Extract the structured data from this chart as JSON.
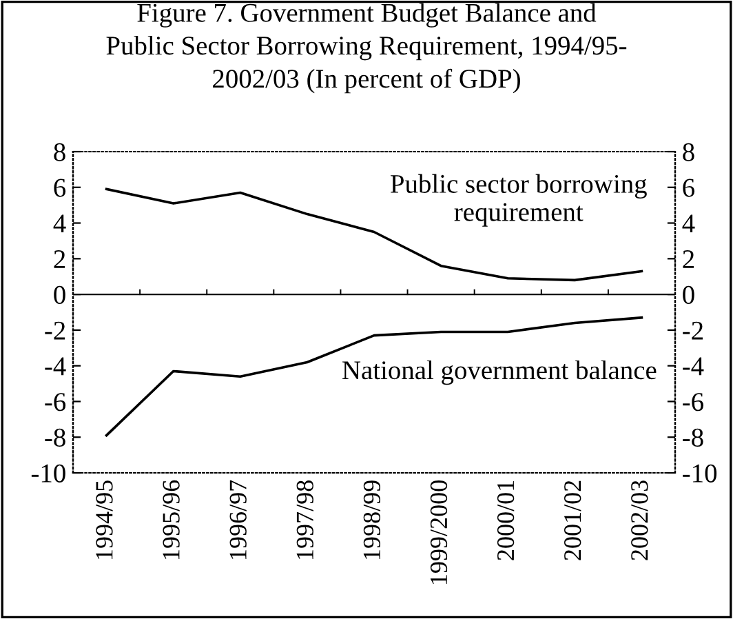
{
  "chart_data": {
    "type": "line",
    "title": "Figure 7. Government Budget Balance and\nPublic Sector Borrowing Requirement, 1994/95-\n2002/03 (In percent of GDP)",
    "categories": [
      "1994/95",
      "1995/96",
      "1996/97",
      "1997/98",
      "1998/99",
      "1999/2000",
      "2000/01",
      "2001/02",
      "2002/03"
    ],
    "series": [
      {
        "name": "Public sector borrowing\nrequirement",
        "color": "#000000",
        "values": [
          5.9,
          5.1,
          5.7,
          4.5,
          3.5,
          1.6,
          0.9,
          0.8,
          1.3
        ]
      },
      {
        "name": "National government balance",
        "color": "#000000",
        "values": [
          -7.9,
          -4.3,
          -4.6,
          -3.8,
          -2.3,
          -2.1,
          -2.1,
          -1.6,
          -1.3
        ]
      }
    ],
    "ylim": [
      -10,
      8
    ],
    "yticks": [
      -10,
      -8,
      -6,
      -4,
      -2,
      0,
      2,
      4,
      6,
      8
    ],
    "y2lim": [
      -10,
      8
    ],
    "y2ticks": [
      -10,
      -8,
      -6,
      -4,
      -2,
      0,
      2,
      4,
      6,
      8
    ],
    "ref_lines": [
      {
        "axis": "y",
        "value": 0,
        "color": "#000000"
      }
    ],
    "grid": false,
    "legend": false
  }
}
